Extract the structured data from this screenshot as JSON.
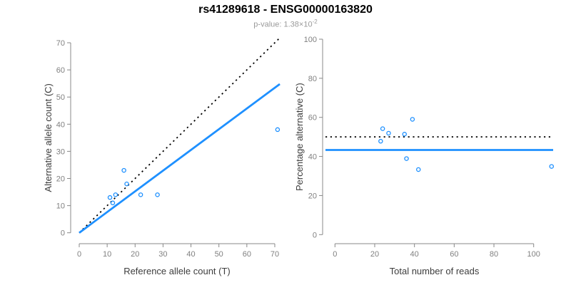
{
  "header": {
    "title": "rs41289618 - ENSG00000163820",
    "pvalue_prefix": "p-value: 1.38×10",
    "pvalue_exponent": "-2"
  },
  "colors": {
    "accent_blue": "#1E90FF",
    "dashed_black": "#000000",
    "axis_gray": "#888888",
    "tick_label_gray": "#808080",
    "axis_title_gray": "#3d3d3d",
    "subtitle_gray": "#9a9a9a"
  },
  "chart_data": [
    {
      "id": "allele-count-scatter",
      "type": "scatter",
      "xlabel": "Reference allele count (T)",
      "ylabel": "Alternative allele count (C)",
      "xlim": [
        0,
        70
      ],
      "ylim": [
        0,
        70
      ],
      "xticks": [
        0,
        10,
        20,
        30,
        40,
        50,
        60,
        70
      ],
      "yticks": [
        0,
        10,
        20,
        30,
        40,
        50,
        60,
        70
      ],
      "grid": false,
      "legend": null,
      "points": [
        [
          11,
          13
        ],
        [
          12,
          11
        ],
        [
          13,
          14
        ],
        [
          16,
          23
        ],
        [
          17,
          18
        ],
        [
          22,
          14
        ],
        [
          28,
          14
        ],
        [
          71,
          38
        ]
      ],
      "lines": [
        {
          "name": "identity-line",
          "style": "dashed",
          "color": "#000000",
          "slope": 1,
          "intercept": 0
        },
        {
          "name": "fit-line",
          "style": "solid",
          "color": "#1E90FF",
          "slope": 0.763,
          "intercept": 0
        }
      ]
    },
    {
      "id": "percentage-scatter",
      "type": "scatter",
      "xlabel": "Total number of reads",
      "ylabel": "Percentage alternative (C)",
      "xlim": [
        0,
        100
      ],
      "ylim": [
        0,
        100
      ],
      "xticks": [
        0,
        20,
        40,
        60,
        80,
        100
      ],
      "yticks": [
        0,
        20,
        40,
        60,
        80,
        100
      ],
      "grid": false,
      "legend": null,
      "points": [
        [
          24,
          54.2
        ],
        [
          23,
          47.8
        ],
        [
          27,
          51.9
        ],
        [
          39,
          59.0
        ],
        [
          35,
          51.4
        ],
        [
          36,
          38.9
        ],
        [
          42,
          33.3
        ],
        [
          109,
          34.9
        ]
      ],
      "lines": [
        {
          "name": "null-line",
          "style": "dashed",
          "color": "#000000",
          "y": 50
        },
        {
          "name": "fit-line",
          "style": "solid",
          "color": "#1E90FF",
          "y": 43.3
        }
      ]
    }
  ]
}
